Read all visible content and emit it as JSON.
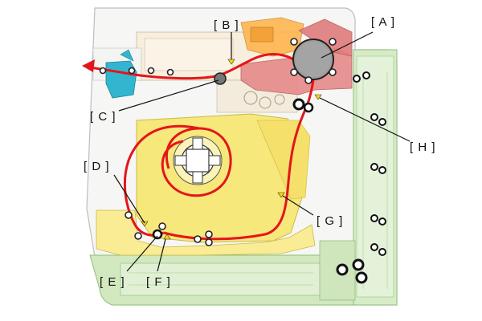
{
  "labels": {
    "a": "[ A ]",
    "b": "[ B ]",
    "c": "[ C ]",
    "d": "[ D ]",
    "e": "[ E ]",
    "f": "[ F ]",
    "g": "[ G ]",
    "h": "[ H ]"
  },
  "colors": {
    "paper_path": "#e3161b",
    "fixing_unit": "#e68a8a",
    "duplex_unit": "#ffb347",
    "output_tray": "#32b6d0",
    "roll_holder": "#f7e87c",
    "frame": "#c9e3b5",
    "roller": "#666666"
  }
}
